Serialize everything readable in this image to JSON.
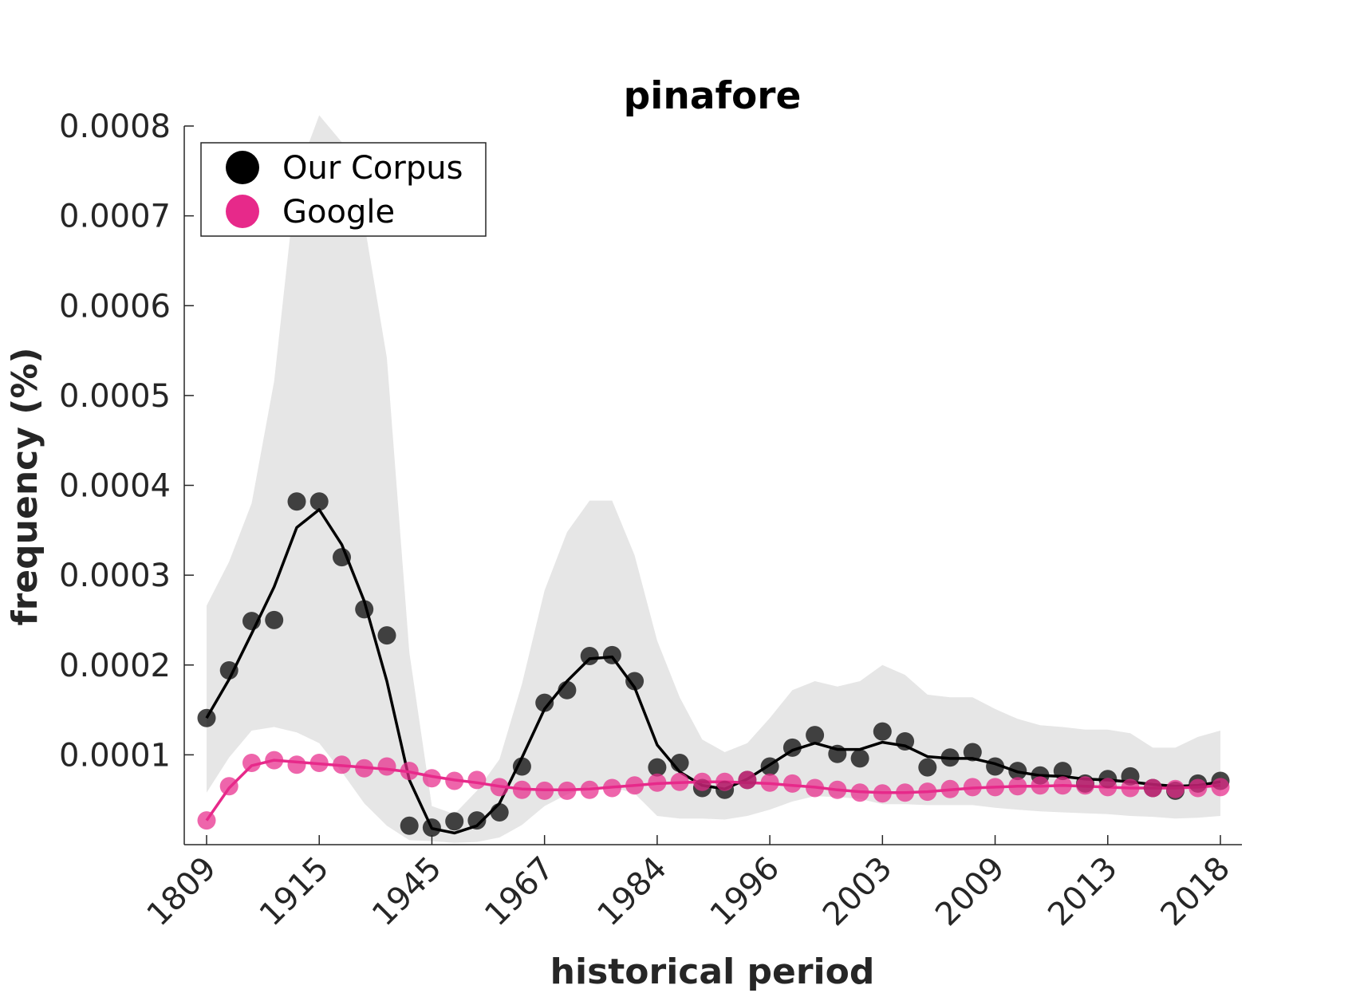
{
  "chart_data": {
    "type": "line",
    "title": "pinafore",
    "xlabel": "historical period",
    "ylabel": "frequency (%)",
    "ylim": [
      0,
      0.0008
    ],
    "y_ticks": [
      {
        "value": 0.0001,
        "label": "0.0001"
      },
      {
        "value": 0.0002,
        "label": "0.0002"
      },
      {
        "value": 0.0003,
        "label": "0.0003"
      },
      {
        "value": 0.0004,
        "label": "0.0004"
      },
      {
        "value": 0.0005,
        "label": "0.0005"
      },
      {
        "value": 0.0006,
        "label": "0.0006"
      },
      {
        "value": 0.0007,
        "label": "0.0007"
      },
      {
        "value": 0.0008,
        "label": "0.0008"
      }
    ],
    "x_ticks": [
      {
        "index": 0,
        "label": "1809"
      },
      {
        "index": 5,
        "label": "1915"
      },
      {
        "index": 10,
        "label": "1945"
      },
      {
        "index": 15,
        "label": "1967"
      },
      {
        "index": 20,
        "label": "1984"
      },
      {
        "index": 25,
        "label": "1996"
      },
      {
        "index": 30,
        "label": "2003"
      },
      {
        "index": 35,
        "label": "2009"
      },
      {
        "index": 40,
        "label": "2013"
      },
      {
        "index": 45,
        "label": "2018"
      }
    ],
    "grid": false,
    "legend_position": "top-left",
    "series": [
      {
        "name": "Our Corpus",
        "color": "#000000",
        "points": [
          0.000141,
          0.000194,
          0.000249,
          0.00025,
          0.000382,
          0.000382,
          0.00032,
          0.000262,
          0.000233,
          2.1e-05,
          1.9e-05,
          2.6e-05,
          2.7e-05,
          3.6e-05,
          8.7e-05,
          0.000158,
          0.000172,
          0.00021,
          0.000211,
          0.000182,
          8.6e-05,
          9.1e-05,
          6.3e-05,
          6.1e-05,
          7.2e-05,
          8.7e-05,
          0.000108,
          0.000122,
          0.000101,
          9.6e-05,
          0.000126,
          0.000115,
          8.6e-05,
          9.7e-05,
          0.000103,
          8.7e-05,
          8.2e-05,
          7.7e-05,
          8.2e-05,
          6.8e-05,
          7.3e-05,
          7.6e-05,
          6.3e-05,
          6e-05,
          6.8e-05,
          7.1e-05
        ],
        "trend": [
          0.000141,
          0.000184,
          0.000235,
          0.000287,
          0.000353,
          0.000373,
          0.000334,
          0.000271,
          0.000182,
          7.2e-05,
          1.8e-05,
          1.3e-05,
          2.1e-05,
          4.6e-05,
          9.7e-05,
          0.000151,
          0.000182,
          0.000207,
          0.000209,
          0.000175,
          0.000111,
          8.1e-05,
          6.6e-05,
          6.2e-05,
          7.3e-05,
          8.9e-05,
          0.000105,
          0.000113,
          0.000106,
          0.000106,
          0.000114,
          0.00011,
          9.8e-05,
          9.6e-05,
          9.6e-05,
          9e-05,
          8.1e-05,
          7.7e-05,
          7.6e-05,
          7.3e-05,
          7.2e-05,
          7e-05,
          6.7e-05,
          6.5e-05,
          6.6e-05,
          7e-05
        ]
      },
      {
        "name": "Google",
        "color": "#e7298a",
        "points": [
          2.7e-05,
          6.5e-05,
          9.1e-05,
          9.4e-05,
          8.9e-05,
          9.1e-05,
          8.9e-05,
          8.5e-05,
          8.7e-05,
          8.2e-05,
          7.4e-05,
          7.1e-05,
          7.2e-05,
          6.4e-05,
          6.1e-05,
          6e-05,
          6e-05,
          6.1e-05,
          6.3e-05,
          6.6e-05,
          6.9e-05,
          7e-05,
          7e-05,
          7e-05,
          7.2e-05,
          6.9e-05,
          6.8e-05,
          6.3e-05,
          6.1e-05,
          5.8e-05,
          5.7e-05,
          5.8e-05,
          5.9e-05,
          6.2e-05,
          6.4e-05,
          6.4e-05,
          6.5e-05,
          6.6e-05,
          6.6e-05,
          6.6e-05,
          6.4e-05,
          6.3e-05,
          6.3e-05,
          6.2e-05,
          6.3e-05,
          6.4e-05
        ],
        "trend": [
          2.7e-05,
          6.3e-05,
          8.8e-05,
          9.4e-05,
          9.2e-05,
          9e-05,
          8.8e-05,
          8.6e-05,
          8.4e-05,
          8.1e-05,
          7.6e-05,
          7.2e-05,
          6.9e-05,
          6.5e-05,
          6.2e-05,
          6.1e-05,
          6.1e-05,
          6.2e-05,
          6.4e-05,
          6.6e-05,
          6.8e-05,
          6.9e-05,
          7e-05,
          7e-05,
          6.9e-05,
          6.8e-05,
          6.6e-05,
          6.4e-05,
          6.1e-05,
          5.9e-05,
          5.8e-05,
          5.8e-05,
          5.9e-05,
          6.1e-05,
          6.3e-05,
          6.4e-05,
          6.5e-05,
          6.5e-05,
          6.6e-05,
          6.5e-05,
          6.4e-05,
          6.3e-05,
          6.3e-05,
          6.3e-05,
          6.4e-05,
          6.6e-05
        ]
      }
    ],
    "confidence_band": {
      "color": "#e6e6e6",
      "upper": [
        0.000266,
        0.000315,
        0.00038,
        0.000516,
        0.000745,
        0.000812,
        0.000782,
        0.000692,
        0.000542,
        0.000214,
        4.3e-05,
        3.4e-05,
        6e-05,
        9.5e-05,
        0.000179,
        0.000283,
        0.000348,
        0.000383,
        0.000383,
        0.000322,
        0.000227,
        0.000164,
        0.000117,
        0.000103,
        0.000113,
        0.000141,
        0.000172,
        0.000182,
        0.000176,
        0.000182,
        0.0002,
        0.000189,
        0.000167,
        0.000164,
        0.000164,
        0.000151,
        0.00014,
        0.000133,
        0.000131,
        0.000128,
        0.000128,
        0.000124,
        0.000108,
        0.000108,
        0.00012,
        0.000127
      ],
      "lower": [
        5.8e-05,
        9.7e-05,
        0.000127,
        0.000131,
        0.000125,
        0.000113,
        8.1e-05,
        4.6e-05,
        2.1e-05,
        5e-06,
        4e-06,
        2e-06,
        3e-06,
        8e-06,
        2.2e-05,
        4.3e-05,
        5.6e-05,
        6.5e-05,
        6.4e-05,
        5.7e-05,
        3.2e-05,
        2.9e-05,
        2.9e-05,
        2.8e-05,
        3.2e-05,
        3.9e-05,
        4.8e-05,
        5.4e-05,
        5.3e-05,
        5.1e-05,
        4.5e-05,
        4.5e-05,
        4.4e-05,
        4.4e-05,
        4.4e-05,
        4.1e-05,
        3.9e-05,
        3.7e-05,
        3.6e-05,
        3.5e-05,
        3.4e-05,
        3.2e-05,
        3.1e-05,
        2.9e-05,
        3e-05,
        3.2e-05
      ]
    }
  }
}
